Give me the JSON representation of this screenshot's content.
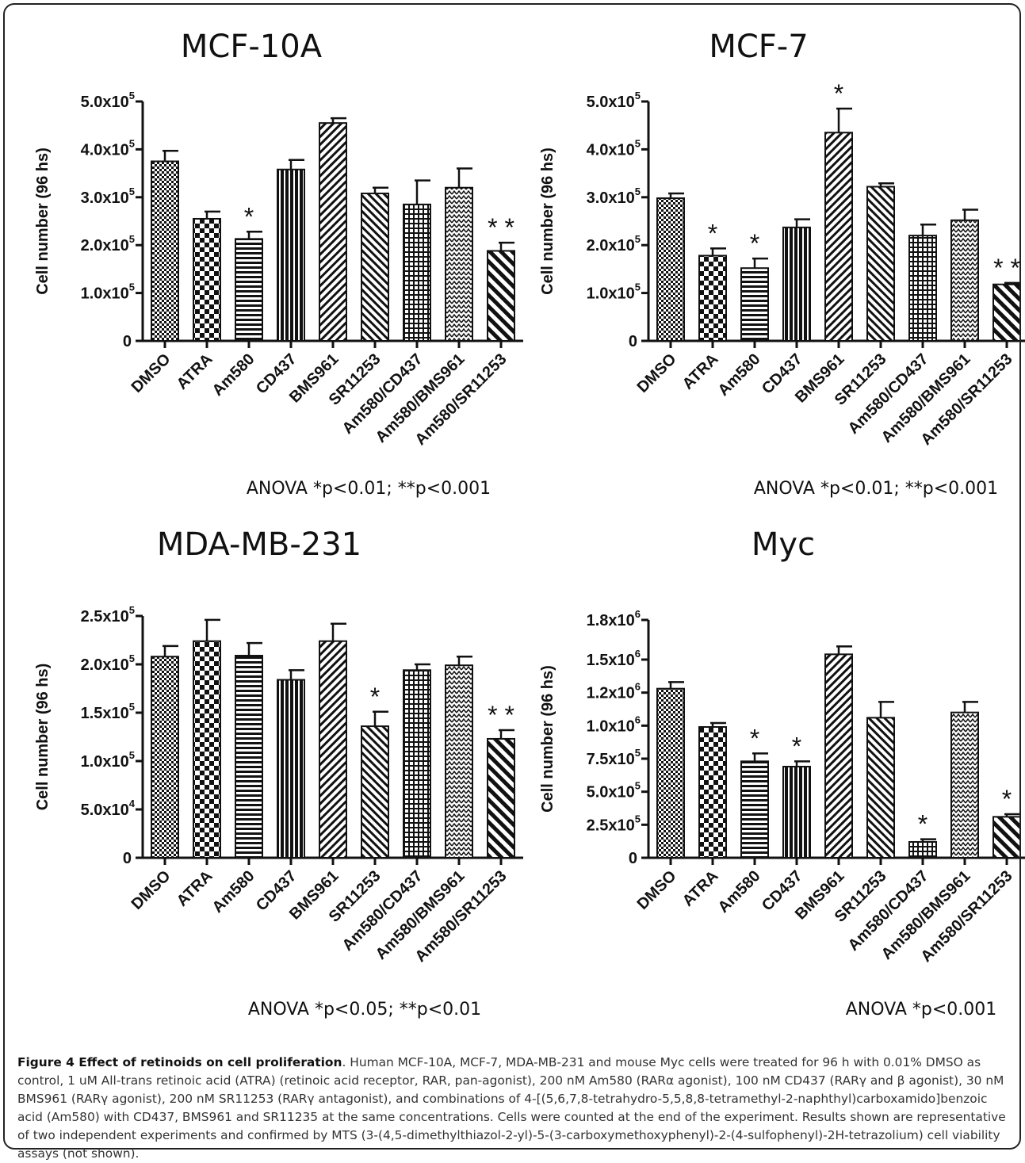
{
  "caption": {
    "label": "Figure 4 Effect of retinoids on cell proliferation",
    "text": ". Human MCF-10A, MCF-7, MDA-MB-231 and mouse Myc cells were treated for 96 h with 0.01% DMSO as control, 1 uM All-trans retinoic acid (ATRA) (retinoic acid receptor, RAR, pan-agonist), 200 nM Am580 (RARα agonist), 100 nM CD437 (RARγ and β agonist), 30 nM BMS961 (RARγ agonist), 200 nM SR11253 (RARγ antagonist), and combinations of 4-[(5,6,7,8-tetrahydro-5,5,8,8-tetramethyl-2-naphthyl)carboxamido]benzoic acid (Am580) with CD437, BMS961 and SR11235 at the same concentrations. Cells were counted at the end of the experiment. Results shown are representative of two independent experiments and confirmed by MTS (3-(4,5-dimethylthiazol-2-yl)-5-(3-carboxymethoxyphenyl)-2-(4-sulfophenyl)-2H-tetrazolium) cell viability assays (not shown)."
  },
  "chart_data": [
    {
      "type": "bar",
      "title": "MCF-10A",
      "ylabel": "Cell number (96 hs)",
      "categories": [
        "DMSO",
        "ATRA",
        "Am580",
        "CD437",
        "BMS961",
        "SR11253",
        "Am580/CD437",
        "Am580/BMS961",
        "Am580/SR11253"
      ],
      "values": [
        375000,
        255000,
        213000,
        358000,
        455000,
        308000,
        285000,
        320000,
        188000
      ],
      "errors": [
        22000,
        15000,
        15000,
        20000,
        10000,
        12000,
        50000,
        40000,
        17000
      ],
      "significance": [
        "",
        "",
        "*",
        "",
        "",
        "",
        "",
        "",
        "**"
      ],
      "ylim": [
        0,
        500000
      ],
      "yticks": [
        {
          "value": 0,
          "base": "0",
          "exp": ""
        },
        {
          "value": 100000,
          "base": "1.0x10",
          "exp": "5"
        },
        {
          "value": 200000,
          "base": "2.0x10",
          "exp": "5"
        },
        {
          "value": 300000,
          "base": "3.0x10",
          "exp": "5"
        },
        {
          "value": 400000,
          "base": "4.0x10",
          "exp": "5"
        },
        {
          "value": 500000,
          "base": "5.0x10",
          "exp": "5"
        }
      ],
      "note": "ANOVA *p<0.01; **p<0.001"
    },
    {
      "type": "bar",
      "title": "MCF-7",
      "ylabel": "Cell number (96 hs)",
      "categories": [
        "DMSO",
        "ATRA",
        "Am580",
        "CD437",
        "BMS961",
        "SR11253",
        "Am580/CD437",
        "Am580/BMS961",
        "Am580/SR11253"
      ],
      "values": [
        298000,
        178000,
        152000,
        237000,
        435000,
        322000,
        220000,
        252000,
        118000
      ],
      "errors": [
        10000,
        15000,
        20000,
        17000,
        50000,
        7000,
        23000,
        22000,
        3000
      ],
      "significance": [
        "",
        "*",
        "*",
        "",
        "*",
        "",
        "",
        "",
        "**"
      ],
      "ylim": [
        0,
        500000
      ],
      "yticks": [
        {
          "value": 0,
          "base": "0",
          "exp": ""
        },
        {
          "value": 100000,
          "base": "1.0x10",
          "exp": "5"
        },
        {
          "value": 200000,
          "base": "2.0x10",
          "exp": "5"
        },
        {
          "value": 300000,
          "base": "3.0x10",
          "exp": "5"
        },
        {
          "value": 400000,
          "base": "4.0x10",
          "exp": "5"
        },
        {
          "value": 500000,
          "base": "5.0x10",
          "exp": "5"
        }
      ],
      "note": "ANOVA *p<0.01; **p<0.001"
    },
    {
      "type": "bar",
      "title": "MDA-MB-231",
      "ylabel": "Cell number (96 hs)",
      "categories": [
        "DMSO",
        "ATRA",
        "Am580",
        "CD437",
        "BMS961",
        "SR11253",
        "Am580/CD437",
        "Am580/BMS961",
        "Am580/SR11253"
      ],
      "values": [
        208000,
        224000,
        209000,
        184000,
        224000,
        136000,
        194000,
        199000,
        123000
      ],
      "errors": [
        11000,
        22000,
        13000,
        10000,
        18000,
        15000,
        6000,
        9000,
        9000
      ],
      "significance": [
        "",
        "",
        "",
        "",
        "",
        "*",
        "",
        "",
        "**"
      ],
      "ylim": [
        0,
        250000
      ],
      "yticks": [
        {
          "value": 0,
          "base": "0",
          "exp": ""
        },
        {
          "value": 50000,
          "base": "5.0x10",
          "exp": "4"
        },
        {
          "value": 100000,
          "base": "1.0x10",
          "exp": "5"
        },
        {
          "value": 150000,
          "base": "1.5x10",
          "exp": "5"
        },
        {
          "value": 200000,
          "base": "2.0x10",
          "exp": "5"
        },
        {
          "value": 250000,
          "base": "2.5x10",
          "exp": "5"
        }
      ],
      "note": "ANOVA *p<0.05; **p<0.01"
    },
    {
      "type": "bar",
      "title": "Myc",
      "ylabel": "Cell number (96 hs)",
      "categories": [
        "DMSO",
        "ATRA",
        "Am580",
        "CD437",
        "BMS961",
        "SR11253",
        "Am580/CD437",
        "Am580/BMS961",
        "Am580/SR11253"
      ],
      "values": [
        1280000,
        990000,
        730000,
        690000,
        1540000,
        1060000,
        120000,
        1100000,
        310000
      ],
      "errors": [
        50000,
        30000,
        60000,
        40000,
        60000,
        120000,
        20000,
        80000,
        20000
      ],
      "significance": [
        "",
        "",
        "*",
        "*",
        "",
        "",
        "*",
        "",
        "*"
      ],
      "ylim": [
        0,
        1800000
      ],
      "yticks": [
        {
          "value": 0,
          "base": "0",
          "exp": ""
        },
        {
          "value": 250000,
          "base": "2.5x10",
          "exp": "5"
        },
        {
          "value": 500000,
          "base": "5.0x10",
          "exp": "5"
        },
        {
          "value": 750000,
          "base": "7.5x10",
          "exp": "5"
        },
        {
          "value": 1000000,
          "base": "1.0x10",
          "exp": "6"
        },
        {
          "value": 1250000,
          "base": "1.2x10",
          "exp": "6"
        },
        {
          "value": 1500000,
          "base": "1.5x10",
          "exp": "6"
        },
        {
          "value": 1800000,
          "base": "1.8x10",
          "exp": "6"
        }
      ],
      "note": "ANOVA *p<0.001"
    }
  ]
}
